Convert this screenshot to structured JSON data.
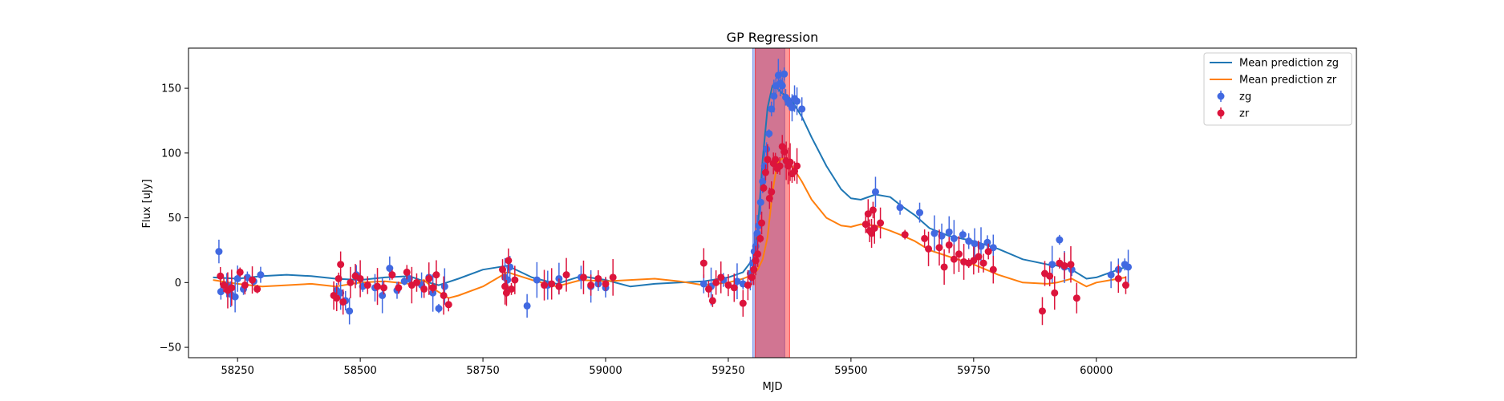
{
  "chart_data": {
    "type": "scatter",
    "title": "GP Regression",
    "xlabel": "MJD",
    "ylabel": "Flux [uJy]",
    "xlim": [
      58150,
      60530
    ],
    "ylim": [
      -58,
      181
    ],
    "xticks": [
      58250,
      58500,
      58750,
      59000,
      59250,
      59500,
      59750,
      60000
    ],
    "yticks": [
      -50,
      0,
      50,
      100,
      150
    ],
    "grid": false,
    "legend_position": "top-right",
    "colors": {
      "zg_line": "#1f77b4",
      "zr_line": "#ff7f0e",
      "zg_points": "#4169e1",
      "zr_points": "#dc143c",
      "span_zg": "#4169e1",
      "span_zr": "#ff0000"
    },
    "shaded_spans": [
      {
        "band": "zg",
        "x_range": [
          59300,
          59365
        ]
      },
      {
        "band": "zr",
        "x_range": [
          59305,
          59375
        ]
      }
    ],
    "legend": [
      {
        "label": "Mean prediction zg",
        "kind": "line",
        "color": "#1f77b4"
      },
      {
        "label": "Mean prediction zr",
        "kind": "line",
        "color": "#ff7f0e"
      },
      {
        "label": "zg",
        "kind": "marker",
        "color": "#4169e1"
      },
      {
        "label": "zr",
        "kind": "marker",
        "color": "#dc143c"
      }
    ],
    "series": [
      {
        "name": "Mean prediction zg",
        "kind": "line",
        "x": [
          58200,
          58250,
          58300,
          58350,
          58400,
          58450,
          58500,
          58550,
          58600,
          58630,
          58660,
          58700,
          58750,
          58800,
          58850,
          58900,
          58950,
          59000,
          59050,
          59100,
          59150,
          59200,
          59250,
          59280,
          59300,
          59310,
          59320,
          59330,
          59340,
          59350,
          59360,
          59370,
          59380,
          59400,
          59420,
          59450,
          59480,
          59500,
          59520,
          59550,
          59580,
          59600,
          59630,
          59660,
          59700,
          59750,
          59800,
          59850,
          59900,
          59920,
          59950,
          59980,
          60000,
          60030,
          60060
        ],
        "y": [
          4,
          3,
          5,
          6,
          5,
          3,
          2,
          4,
          5,
          1,
          -2,
          3,
          10,
          13,
          4,
          -1,
          5,
          2,
          -3,
          -1,
          0,
          1,
          4,
          8,
          18,
          40,
          95,
          135,
          152,
          150,
          146,
          144,
          140,
          128,
          112,
          90,
          72,
          65,
          64,
          68,
          66,
          60,
          52,
          42,
          36,
          32,
          26,
          18,
          14,
          13,
          10,
          3,
          4,
          8,
          12
        ]
      },
      {
        "name": "Mean prediction zr",
        "kind": "line",
        "x": [
          58200,
          58250,
          58300,
          58350,
          58400,
          58450,
          58500,
          58550,
          58600,
          58630,
          58650,
          58680,
          58700,
          58750,
          58800,
          58850,
          58900,
          58950,
          59000,
          59050,
          59100,
          59150,
          59200,
          59250,
          59280,
          59300,
          59310,
          59320,
          59330,
          59340,
          59350,
          59360,
          59370,
          59380,
          59400,
          59420,
          59450,
          59480,
          59500,
          59520,
          59550,
          59580,
          59600,
          59630,
          59660,
          59700,
          59750,
          59800,
          59850,
          59900,
          59920,
          59950,
          59980,
          60000,
          60030,
          60060
        ],
        "y": [
          2,
          -1,
          -3,
          -2,
          -1,
          -3,
          0,
          1,
          -1,
          2,
          -5,
          -12,
          -10,
          -3,
          8,
          2,
          -3,
          2,
          1,
          2,
          3,
          1,
          -2,
          0,
          3,
          6,
          10,
          18,
          35,
          70,
          92,
          96,
          95,
          90,
          78,
          64,
          50,
          44,
          43,
          45,
          44,
          40,
          37,
          32,
          25,
          20,
          14,
          6,
          0,
          -1,
          0,
          3,
          -3,
          0,
          2,
          4
        ]
      },
      {
        "name": "zg",
        "kind": "scatter",
        "points": [
          [
            58212,
            24
          ],
          [
            58216,
            -7
          ],
          [
            58228,
            -2
          ],
          [
            58236,
            -9
          ],
          [
            58245,
            -11
          ],
          [
            58250,
            3
          ],
          [
            58262,
            -5
          ],
          [
            58270,
            4
          ],
          [
            58283,
            1
          ],
          [
            58297,
            6
          ],
          [
            58452,
            -6
          ],
          [
            58460,
            -8
          ],
          [
            58470,
            -14
          ],
          [
            58478,
            -22
          ],
          [
            58492,
            6
          ],
          [
            58505,
            -3
          ],
          [
            58530,
            -4
          ],
          [
            58545,
            -10
          ],
          [
            58560,
            11
          ],
          [
            58575,
            -6
          ],
          [
            58590,
            1
          ],
          [
            58600,
            3
          ],
          [
            58625,
            -2
          ],
          [
            58640,
            4
          ],
          [
            58648,
            -8
          ],
          [
            58660,
            -20
          ],
          [
            58672,
            -3
          ],
          [
            58795,
            4
          ],
          [
            58800,
            2
          ],
          [
            58805,
            12
          ],
          [
            58840,
            -18
          ],
          [
            58860,
            2
          ],
          [
            58882,
            -2
          ],
          [
            58905,
            3
          ],
          [
            58950,
            4
          ],
          [
            58970,
            -3
          ],
          [
            58985,
            -1
          ],
          [
            59000,
            -4
          ],
          [
            59200,
            -1
          ],
          [
            59215,
            -3
          ],
          [
            59240,
            2
          ],
          [
            59268,
            1
          ],
          [
            59280,
            -1
          ],
          [
            59295,
            7
          ],
          [
            59300,
            15
          ],
          [
            59303,
            24
          ],
          [
            59306,
            28
          ],
          [
            59309,
            38
          ],
          [
            59312,
            44
          ],
          [
            59316,
            62
          ],
          [
            59320,
            78
          ],
          [
            59324,
            90
          ],
          [
            59328,
            103
          ],
          [
            59333,
            115
          ],
          [
            59338,
            134
          ],
          [
            59343,
            144
          ],
          [
            59347,
            152
          ],
          [
            59352,
            160
          ],
          [
            59356,
            154
          ],
          [
            59360,
            152
          ],
          [
            59364,
            161
          ],
          [
            59367,
            143
          ],
          [
            59371,
            141
          ],
          [
            59375,
            138
          ],
          [
            59380,
            135
          ],
          [
            59385,
            142
          ],
          [
            59390,
            140
          ],
          [
            59400,
            134
          ],
          [
            59550,
            70
          ],
          [
            59600,
            58
          ],
          [
            59640,
            54
          ],
          [
            59670,
            38
          ],
          [
            59685,
            36
          ],
          [
            59700,
            39
          ],
          [
            59710,
            34
          ],
          [
            59728,
            37
          ],
          [
            59740,
            32
          ],
          [
            59752,
            30
          ],
          [
            59765,
            28
          ],
          [
            59778,
            31
          ],
          [
            59790,
            27
          ],
          [
            59910,
            14
          ],
          [
            59925,
            33
          ],
          [
            59935,
            12
          ],
          [
            59950,
            10
          ],
          [
            60030,
            6
          ],
          [
            60045,
            10
          ],
          [
            60058,
            14
          ],
          [
            60065,
            12
          ]
        ]
      },
      {
        "name": "zr",
        "kind": "scatter",
        "points": [
          [
            58215,
            5
          ],
          [
            58222,
            -2
          ],
          [
            58230,
            -6
          ],
          [
            58238,
            -4
          ],
          [
            58255,
            8
          ],
          [
            58265,
            -2
          ],
          [
            58280,
            2
          ],
          [
            58290,
            -5
          ],
          [
            58446,
            -10
          ],
          [
            58452,
            -12
          ],
          [
            58456,
            3
          ],
          [
            58460,
            14
          ],
          [
            58465,
            -15
          ],
          [
            58480,
            0
          ],
          [
            58490,
            5
          ],
          [
            58500,
            3
          ],
          [
            58515,
            -2
          ],
          [
            58535,
            -3
          ],
          [
            58548,
            -4
          ],
          [
            58565,
            6
          ],
          [
            58578,
            -4
          ],
          [
            58595,
            8
          ],
          [
            58605,
            -2
          ],
          [
            58615,
            0
          ],
          [
            58630,
            -5
          ],
          [
            58640,
            3
          ],
          [
            58648,
            -4
          ],
          [
            58655,
            6
          ],
          [
            58670,
            -10
          ],
          [
            58680,
            -17
          ],
          [
            58790,
            10
          ],
          [
            58795,
            -3
          ],
          [
            58798,
            -8
          ],
          [
            58802,
            17
          ],
          [
            58808,
            -5
          ],
          [
            58815,
            2
          ],
          [
            58875,
            -2
          ],
          [
            58890,
            -1
          ],
          [
            58905,
            -3
          ],
          [
            58920,
            6
          ],
          [
            58955,
            4
          ],
          [
            58970,
            -2
          ],
          [
            58985,
            3
          ],
          [
            59000,
            -1
          ],
          [
            59015,
            4
          ],
          [
            59200,
            15
          ],
          [
            59210,
            -5
          ],
          [
            59218,
            -14
          ],
          [
            59225,
            0
          ],
          [
            59235,
            4
          ],
          [
            59250,
            -2
          ],
          [
            59262,
            -4
          ],
          [
            59280,
            -16
          ],
          [
            59290,
            -2
          ],
          [
            59298,
            4
          ],
          [
            59302,
            10
          ],
          [
            59306,
            17
          ],
          [
            59310,
            22
          ],
          [
            59315,
            34
          ],
          [
            59318,
            46
          ],
          [
            59322,
            73
          ],
          [
            59326,
            85
          ],
          [
            59330,
            95
          ],
          [
            59334,
            65
          ],
          [
            59338,
            70
          ],
          [
            59342,
            92
          ],
          [
            59346,
            95
          ],
          [
            59350,
            88
          ],
          [
            59355,
            90
          ],
          [
            59360,
            105
          ],
          [
            59364,
            101
          ],
          [
            59368,
            94
          ],
          [
            59372,
            90
          ],
          [
            59376,
            93
          ],
          [
            59380,
            84
          ],
          [
            59385,
            86
          ],
          [
            59390,
            90
          ],
          [
            59530,
            45
          ],
          [
            59535,
            53
          ],
          [
            59538,
            40
          ],
          [
            59542,
            38
          ],
          [
            59545,
            56
          ],
          [
            59548,
            42
          ],
          [
            59560,
            46
          ],
          [
            59610,
            37
          ],
          [
            59650,
            34
          ],
          [
            59658,
            26
          ],
          [
            59680,
            27
          ],
          [
            59690,
            12
          ],
          [
            59700,
            29
          ],
          [
            59710,
            18
          ],
          [
            59720,
            22
          ],
          [
            59730,
            16
          ],
          [
            59740,
            15
          ],
          [
            59750,
            17
          ],
          [
            59760,
            20
          ],
          [
            59770,
            15
          ],
          [
            59780,
            24
          ],
          [
            59790,
            10
          ],
          [
            59890,
            -22
          ],
          [
            59895,
            7
          ],
          [
            59905,
            5
          ],
          [
            59915,
            -8
          ],
          [
            59925,
            15
          ],
          [
            59935,
            13
          ],
          [
            59948,
            14
          ],
          [
            59960,
            -12
          ],
          [
            60045,
            3
          ],
          [
            60060,
            -2
          ]
        ]
      }
    ]
  }
}
